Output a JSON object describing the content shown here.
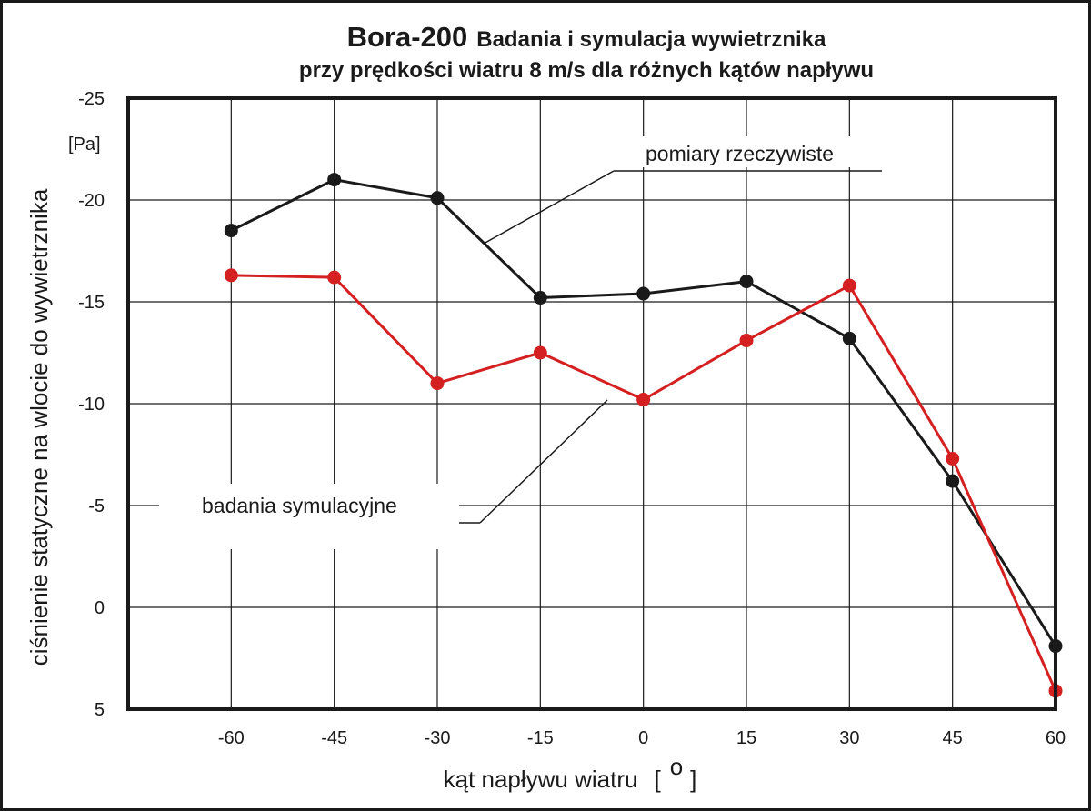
{
  "chart_data": {
    "type": "line",
    "title_main": "Bora-200",
    "title_rest": "Badania i symulacja wywietrznika",
    "subtitle": "przy prędkości wiatru 8 m/s dla różnych kątów napływu",
    "xlabel": "kąt napływu wiatru",
    "xunit_open": "[",
    "xunit_symbol": "o",
    "xunit_close": "]",
    "ylabel": "ciśnienie statyczne na wlocie do wywietrznika",
    "yunit": "[Pa]",
    "x": [
      -60,
      -45,
      -30,
      -15,
      0,
      15,
      30,
      45,
      60
    ],
    "xlim": [
      -75,
      60
    ],
    "ylim": [
      5,
      -25
    ],
    "y_inverted": true,
    "xticks": [
      -60,
      -45,
      -30,
      -15,
      0,
      15,
      30,
      45,
      60
    ],
    "xtick_labels": [
      "-60",
      "-45",
      "-30",
      "-15",
      "0",
      "15",
      "30",
      "45",
      "60"
    ],
    "yticks": [
      -25,
      -20,
      -15,
      -10,
      -5,
      0,
      5
    ],
    "ytick_labels": [
      "-25",
      "-20",
      "-15",
      "-10",
      "-5",
      "0",
      "5"
    ],
    "grid": true,
    "series": [
      {
        "name": "pomiary rzeczywiste",
        "color": "#1a1a1a",
        "values": [
          -18.5,
          -21.0,
          -20.1,
          -15.2,
          -15.4,
          -16.0,
          -13.2,
          -6.2,
          1.9
        ]
      },
      {
        "name": "badania symulacyjne",
        "color": "#d42020",
        "values": [
          -16.3,
          -16.2,
          -11.0,
          -12.5,
          -10.2,
          -13.1,
          -15.8,
          -7.3,
          4.1
        ]
      }
    ]
  }
}
